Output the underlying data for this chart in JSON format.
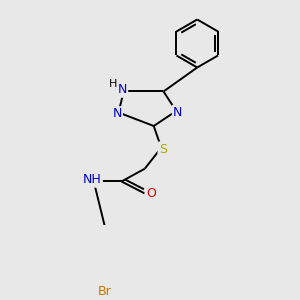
{
  "background_color": "#e8e8e8",
  "atom_colors": {
    "C": "#000000",
    "N": "#0000cc",
    "O": "#dd0000",
    "S": "#aaaa00",
    "Br": "#cc7700",
    "H": "#000000"
  },
  "bond_color": "#000000",
  "bond_lw": 1.4,
  "font_size": 9.0
}
